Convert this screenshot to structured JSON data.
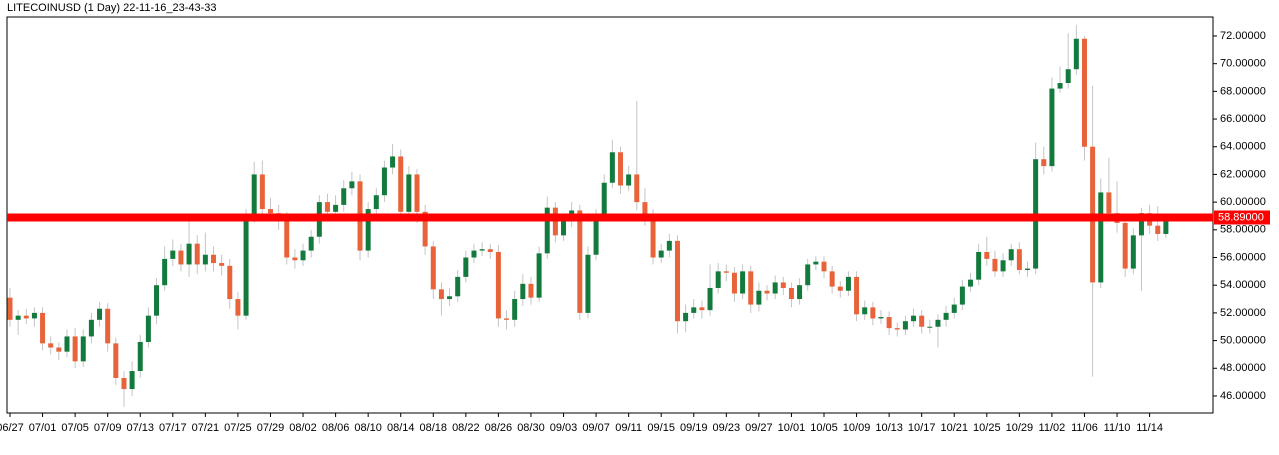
{
  "chart_data": {
    "type": "candlestick",
    "title": "LITECOINUSD (1 Day) 22-11-16_23-43-33",
    "up_color": "#127a3c",
    "down_color": "#e8633a",
    "wick_color": "#c4c4c4",
    "categories": [
      "06/27",
      null,
      null,
      null,
      "07/01",
      null,
      null,
      null,
      "07/05",
      null,
      null,
      null,
      "07/09",
      null,
      null,
      null,
      "07/13",
      null,
      null,
      null,
      "07/17",
      null,
      null,
      null,
      "07/21",
      null,
      null,
      null,
      "07/25",
      null,
      null,
      null,
      "07/29",
      null,
      null,
      null,
      "08/02",
      null,
      null,
      null,
      "08/06",
      null,
      null,
      null,
      "08/10",
      null,
      null,
      null,
      "08/14",
      null,
      null,
      null,
      "08/18",
      null,
      null,
      null,
      "08/22",
      null,
      null,
      null,
      "08/26",
      null,
      null,
      null,
      "08/30",
      null,
      null,
      null,
      "09/03",
      null,
      null,
      null,
      "09/07",
      null,
      null,
      null,
      "09/11",
      null,
      null,
      null,
      "09/15",
      null,
      null,
      null,
      "09/19",
      null,
      null,
      null,
      "09/23",
      null,
      null,
      null,
      "09/27",
      null,
      null,
      null,
      "10/01",
      null,
      null,
      null,
      "10/05",
      null,
      null,
      null,
      "10/09",
      null,
      null,
      null,
      "10/13",
      null,
      null,
      null,
      "10/17",
      null,
      null,
      null,
      "10/21",
      null,
      null,
      null,
      "10/25",
      null,
      null,
      null,
      "10/29",
      null,
      null,
      null,
      "11/02",
      null,
      null,
      null,
      "11/06",
      null,
      null,
      null,
      "11/10",
      null,
      null,
      null,
      "11/14",
      null,
      null
    ],
    "open": [
      53.1,
      51.5,
      51.8,
      51.6,
      52.0,
      49.8,
      49.5,
      49.2,
      50.3,
      48.5,
      50.3,
      51.5,
      52.3,
      49.8,
      47.3,
      46.5,
      47.8,
      49.9,
      51.8,
      54.0,
      55.9,
      56.5,
      55.5,
      57.0,
      55.5,
      56.2,
      55.6,
      55.4,
      53.0,
      51.8,
      58.8,
      62.0,
      59.5,
      59.2,
      58.8,
      56.0,
      55.8,
      56.5,
      57.5,
      60.0,
      59.3,
      59.8,
      61.0,
      61.5,
      56.5,
      59.5,
      60.5,
      62.5,
      63.3,
      59.3,
      62.0,
      59.3,
      56.8,
      53.7,
      53.0,
      53.2,
      54.6,
      56.0,
      56.5,
      56.6,
      56.4,
      51.6,
      51.5,
      53.0,
      54.1,
      53.1,
      56.3,
      59.6,
      57.6,
      58.6,
      59.4,
      52.0,
      56.2,
      59.0,
      61.4,
      63.6,
      61.2,
      62.0,
      60.0,
      59.0,
      56.0,
      56.5,
      57.2,
      51.4,
      52.0,
      52.4,
      52.2,
      53.8,
      55.0,
      54.9,
      53.4,
      55.0,
      52.6,
      53.6,
      53.4,
      54.2,
      53.8,
      53.0,
      54.0,
      55.5,
      55.7,
      55.0,
      53.9,
      53.6,
      54.6,
      51.9,
      52.4,
      51.6,
      51.7,
      50.9,
      50.8,
      51.4,
      51.8,
      51.0,
      51.0,
      51.5,
      52.0,
      52.6,
      53.9,
      54.4,
      56.4,
      55.9,
      55.0,
      55.8,
      56.6,
      55.1,
      55.2,
      63.1,
      62.6,
      68.2,
      68.6,
      69.6,
      71.8,
      64.0,
      54.2,
      60.7,
      59.2,
      58.5,
      55.2,
      57.6,
      59.2,
      58.3,
      57.7
    ],
    "high": [
      53.8,
      52.2,
      52.3,
      52.4,
      52.4,
      50.3,
      49.9,
      50.8,
      50.9,
      50.8,
      52.0,
      52.8,
      52.7,
      50.2,
      47.8,
      48.5,
      50.4,
      52.4,
      54.5,
      56.8,
      57.3,
      57.0,
      58.9,
      57.6,
      57.8,
      56.8,
      56.2,
      55.9,
      53.5,
      59.5,
      62.9,
      63.0,
      60.3,
      59.8,
      59.3,
      56.6,
      57.0,
      58.0,
      60.5,
      60.6,
      60.5,
      61.6,
      62.2,
      62.0,
      60.0,
      61.0,
      63.0,
      64.2,
      63.8,
      62.6,
      62.4,
      59.8,
      57.2,
      54.2,
      53.8,
      55.1,
      56.5,
      57.0,
      57.1,
      57.0,
      56.9,
      52.2,
      53.6,
      54.8,
      54.6,
      56.8,
      60.4,
      60.0,
      59.2,
      60.0,
      59.8,
      56.8,
      59.5,
      62.0,
      64.5,
      64.0,
      62.6,
      67.3,
      61.0,
      59.5,
      57.0,
      57.7,
      57.6,
      52.6,
      53.0,
      52.9,
      55.5,
      55.6,
      55.5,
      55.3,
      55.5,
      55.4,
      54.2,
      54.0,
      54.7,
      54.6,
      54.2,
      54.5,
      55.9,
      56.1,
      56.1,
      55.4,
      54.3,
      55.0,
      55.0,
      52.9,
      52.8,
      52.2,
      52.1,
      51.3,
      51.8,
      52.3,
      52.2,
      51.5,
      51.9,
      52.5,
      53.1,
      54.4,
      54.9,
      57.0,
      57.5,
      56.5,
      56.3,
      57.0,
      57.1,
      55.7,
      64.3,
      64.0,
      69.0,
      69.8,
      72.2,
      72.8,
      72.0,
      68.4,
      61.7,
      63.2,
      61.5,
      59.0,
      58.1,
      59.6,
      59.8,
      59.7,
      59.2
    ],
    "low": [
      51.0,
      50.4,
      51.2,
      51.0,
      49.3,
      49.0,
      48.6,
      48.8,
      48.0,
      48.1,
      49.8,
      51.0,
      49.2,
      46.8,
      45.2,
      46.0,
      47.3,
      49.5,
      51.2,
      53.6,
      55.4,
      55.0,
      54.6,
      54.8,
      55.0,
      55.0,
      54.7,
      52.3,
      50.8,
      51.5,
      58.5,
      58.8,
      58.6,
      58.0,
      55.5,
      55.2,
      55.4,
      56.0,
      57.0,
      58.7,
      58.9,
      59.3,
      60.5,
      55.8,
      56.0,
      59.0,
      60.0,
      62.0,
      58.7,
      58.9,
      58.5,
      56.2,
      53.0,
      51.8,
      52.5,
      52.8,
      54.2,
      55.6,
      56.1,
      55.9,
      51.0,
      50.8,
      51.0,
      52.5,
      52.6,
      52.8,
      55.9,
      57.1,
      57.2,
      58.2,
      51.5,
      51.6,
      55.8,
      58.6,
      61.0,
      60.6,
      60.8,
      59.4,
      58.3,
      55.5,
      55.6,
      56.0,
      50.5,
      50.6,
      51.6,
      51.6,
      51.8,
      53.4,
      54.3,
      52.8,
      53.0,
      52.0,
      52.1,
      52.9,
      53.0,
      53.3,
      52.4,
      52.6,
      53.6,
      55.1,
      54.5,
      53.4,
      53.1,
      53.2,
      51.4,
      51.5,
      51.1,
      51.2,
      50.4,
      50.3,
      50.4,
      51.0,
      50.5,
      50.5,
      49.5,
      51.0,
      51.6,
      52.2,
      53.5,
      54.0,
      55.4,
      54.6,
      54.6,
      55.4,
      54.8,
      54.6,
      54.8,
      62.0,
      62.2,
      67.9,
      68.2,
      69.2,
      63.0,
      47.4,
      53.8,
      58.6,
      57.8,
      54.6,
      54.8,
      53.6,
      57.7,
      57.2,
      57.4
    ],
    "close": [
      51.5,
      51.8,
      51.6,
      52.0,
      49.8,
      49.5,
      49.2,
      50.3,
      48.5,
      50.3,
      51.5,
      52.3,
      49.8,
      47.3,
      46.5,
      47.8,
      49.9,
      51.8,
      54.0,
      55.9,
      56.5,
      55.5,
      57.0,
      55.5,
      56.2,
      55.6,
      55.4,
      53.0,
      51.8,
      58.8,
      62.0,
      59.5,
      59.2,
      58.8,
      56.0,
      55.8,
      56.5,
      57.5,
      60.0,
      59.3,
      59.8,
      61.0,
      61.5,
      56.5,
      59.5,
      60.5,
      62.5,
      63.3,
      59.3,
      62.0,
      59.3,
      56.8,
      53.7,
      53.0,
      53.2,
      54.6,
      56.0,
      56.5,
      56.6,
      56.4,
      51.6,
      51.5,
      53.0,
      54.1,
      53.1,
      56.3,
      59.6,
      57.6,
      58.6,
      59.4,
      52.0,
      56.2,
      59.0,
      61.4,
      63.6,
      61.2,
      62.0,
      60.0,
      59.0,
      56.0,
      56.5,
      57.2,
      51.4,
      52.0,
      52.4,
      52.2,
      53.8,
      55.0,
      54.9,
      53.4,
      55.0,
      52.6,
      53.6,
      53.4,
      54.2,
      53.8,
      53.0,
      54.0,
      55.5,
      55.7,
      55.0,
      53.9,
      53.6,
      54.6,
      51.9,
      52.4,
      51.6,
      51.7,
      50.9,
      50.8,
      51.4,
      51.8,
      51.0,
      51.0,
      51.5,
      52.0,
      52.6,
      53.9,
      54.4,
      56.4,
      55.9,
      55.0,
      55.8,
      56.6,
      55.1,
      55.2,
      63.1,
      62.6,
      68.2,
      68.6,
      69.6,
      71.8,
      64.0,
      54.2,
      60.7,
      59.2,
      58.5,
      55.2,
      57.6,
      59.2,
      58.3,
      57.7,
      58.9
    ],
    "ylim": [
      44.77,
      73.37
    ],
    "yticks": [
      {
        "value": 46,
        "label": "46.00000"
      },
      {
        "value": 48,
        "label": "48.00000"
      },
      {
        "value": 50,
        "label": "50.00000"
      },
      {
        "value": 52,
        "label": "52.00000"
      },
      {
        "value": 54,
        "label": "54.00000"
      },
      {
        "value": 56,
        "label": "56.00000"
      },
      {
        "value": 58,
        "label": "58.00000"
      },
      {
        "value": 60,
        "label": "60.00000"
      },
      {
        "value": 62,
        "label": "62.00000"
      },
      {
        "value": 64,
        "label": "64.00000"
      },
      {
        "value": 66,
        "label": "66.00000"
      },
      {
        "value": 68,
        "label": "68.00000"
      },
      {
        "value": 70,
        "label": "70.00000"
      },
      {
        "value": 72,
        "label": "72.00000"
      }
    ],
    "price_line": {
      "value": 58.89,
      "label": "58.89000",
      "color": "#ff0000"
    }
  }
}
